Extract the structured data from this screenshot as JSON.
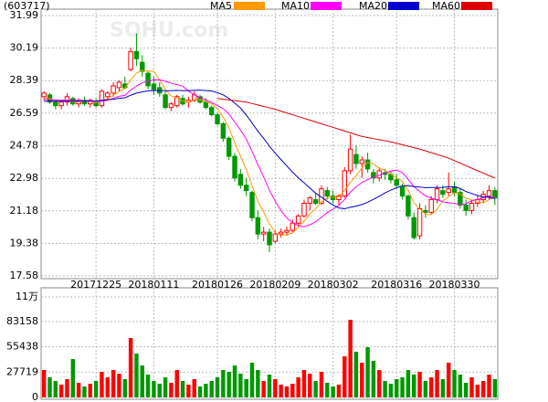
{
  "chart_data": [
    {
      "type": "candlestick",
      "title": "(603717)",
      "watermark": "SOHU.com",
      "categories": [
        null,
        null,
        null,
        null,
        null,
        null,
        null,
        null,
        null,
        "20171225",
        null,
        null,
        null,
        null,
        null,
        null,
        null,
        null,
        null,
        "20180111",
        null,
        null,
        null,
        null,
        null,
        null,
        null,
        null,
        null,
        null,
        "20180126",
        null,
        null,
        null,
        null,
        null,
        null,
        null,
        null,
        null,
        "20180209",
        null,
        null,
        null,
        null,
        null,
        null,
        null,
        null,
        null,
        "20180302",
        null,
        null,
        null,
        null,
        null,
        null,
        null,
        null,
        null,
        null,
        "20180316",
        null,
        null,
        null,
        null,
        null,
        null,
        null,
        null,
        null,
        "20180330",
        null,
        null,
        null,
        null,
        null,
        null,
        null
      ],
      "open": [
        27.5,
        27.6,
        27.2,
        27.0,
        27.2,
        27.4,
        27.1,
        27.3,
        27.1,
        27.2,
        27.0,
        27.5,
        27.7,
        28.0,
        28.2,
        29.0,
        30.0,
        29.4,
        28.8,
        28.2,
        28.0,
        27.6,
        26.9,
        27.0,
        27.4,
        27.2,
        27.3,
        27.5,
        27.2,
        26.9,
        26.5,
        26.0,
        25.2,
        24.2,
        23.2,
        22.6,
        22.2,
        20.8,
        19.9,
        20.0,
        19.5,
        19.9,
        20.0,
        20.1,
        20.5,
        20.9,
        21.6,
        21.8,
        21.6,
        22.3,
        22.0,
        21.8,
        22.0,
        23.4,
        24.3,
        23.8,
        24.0,
        23.3,
        23.0,
        23.3,
        23.2,
        22.9,
        22.5,
        22.0,
        20.8,
        19.8,
        21.2,
        21.1,
        21.8,
        22.3,
        22.2,
        22.5,
        22.2,
        21.5,
        21.2,
        21.6,
        21.8,
        22.0,
        22.3
      ],
      "high": [
        27.8,
        27.7,
        27.3,
        27.3,
        27.7,
        27.5,
        27.4,
        27.5,
        27.4,
        27.4,
        27.9,
        27.8,
        28.3,
        28.4,
        28.6,
        30.2,
        31.0,
        29.8,
        28.9,
        28.6,
        28.3,
        27.8,
        27.2,
        27.6,
        27.6,
        27.5,
        27.8,
        27.6,
        27.4,
        27.0,
        26.6,
        26.1,
        25.3,
        24.4,
        23.5,
        23.0,
        22.3,
        21.2,
        20.3,
        20.2,
        20.1,
        20.2,
        20.3,
        20.7,
        21.0,
        21.8,
        22.0,
        22.2,
        22.6,
        22.5,
        22.3,
        22.1,
        23.6,
        25.4,
        24.8,
        24.2,
        24.4,
        23.5,
        23.6,
        23.5,
        23.4,
        23.2,
        22.7,
        22.1,
        21.1,
        21.6,
        21.5,
        22.0,
        22.6,
        22.6,
        23.3,
        22.8,
        22.4,
        21.8,
        21.8,
        22.0,
        22.3,
        22.6,
        22.5
      ],
      "low": [
        27.3,
        27.1,
        26.8,
        26.8,
        27.0,
        27.0,
        26.9,
        27.0,
        26.9,
        26.9,
        26.9,
        27.3,
        27.5,
        27.8,
        27.9,
        28.9,
        29.2,
        28.6,
        27.9,
        27.6,
        27.5,
        26.8,
        26.7,
        26.9,
        27.0,
        26.9,
        27.2,
        27.1,
        26.8,
        26.4,
        25.9,
        25.0,
        24.0,
        22.8,
        22.4,
        22.0,
        20.6,
        19.6,
        19.5,
        18.9,
        19.4,
        19.7,
        19.8,
        20.0,
        20.3,
        20.8,
        21.2,
        21.5,
        21.5,
        21.8,
        21.6,
        21.5,
        21.9,
        23.2,
        23.5,
        23.0,
        23.3,
        22.7,
        22.8,
        22.9,
        22.7,
        22.4,
        21.8,
        20.7,
        19.6,
        19.6,
        20.8,
        21.0,
        21.6,
        21.9,
        22.0,
        22.0,
        21.3,
        20.9,
        21.0,
        21.4,
        21.6,
        21.8,
        21.5
      ],
      "close": [
        27.7,
        27.2,
        27.0,
        27.2,
        27.5,
        27.1,
        27.3,
        27.1,
        27.3,
        27.0,
        27.8,
        27.7,
        28.1,
        28.3,
        28.0,
        30.0,
        29.6,
        28.9,
        28.1,
        27.9,
        27.7,
        26.9,
        27.1,
        27.5,
        27.1,
        27.3,
        27.6,
        27.2,
        26.9,
        26.5,
        26.0,
        25.2,
        24.2,
        23.0,
        22.6,
        22.3,
        20.8,
        19.9,
        20.0,
        19.3,
        19.9,
        20.0,
        20.1,
        20.5,
        20.9,
        21.6,
        21.9,
        21.6,
        22.4,
        22.0,
        21.8,
        22.0,
        23.4,
        24.6,
        23.8,
        24.0,
        23.5,
        23.0,
        23.4,
        23.2,
        22.9,
        22.6,
        22.0,
        20.9,
        19.7,
        21.3,
        21.1,
        21.8,
        22.4,
        22.1,
        22.4,
        22.2,
        21.5,
        21.2,
        21.6,
        21.8,
        22.1,
        22.3,
        21.9
      ],
      "up_color": "#ff0000",
      "down_color": "#009900",
      "ylim": [
        17.58,
        31.99
      ],
      "yticks": [
        17.58,
        19.38,
        21.18,
        22.98,
        24.78,
        26.59,
        28.39,
        30.19,
        31.99
      ],
      "grid": true,
      "series": [
        {
          "name": "MA5",
          "color": "#ff9900",
          "values": [
            27.4,
            27.4,
            27.3,
            27.3,
            27.32,
            27.2,
            27.22,
            27.24,
            27.26,
            27.16,
            27.3,
            27.38,
            27.58,
            27.78,
            27.98,
            28.42,
            28.8,
            28.96,
            28.92,
            28.9,
            28.44,
            27.9,
            27.54,
            27.42,
            27.26,
            27.18,
            27.32,
            27.34,
            27.22,
            27.1,
            26.84,
            26.36,
            25.76,
            24.98,
            24.2,
            23.46,
            22.58,
            21.72,
            21.12,
            20.46,
            19.98,
            19.82,
            19.86,
            19.96,
            20.28,
            20.62,
            21.0,
            21.3,
            21.68,
            21.9,
            21.94,
            21.96,
            22.32,
            22.76,
            23.12,
            23.56,
            23.86,
            23.78,
            23.54,
            23.42,
            23.2,
            23.02,
            22.82,
            22.32,
            21.62,
            21.3,
            21.0,
            20.96,
            21.26,
            21.74,
            21.96,
            22.18,
            22.12,
            21.88,
            21.78,
            21.66,
            21.64,
            21.8,
            21.94
          ]
        },
        {
          "name": "MA10",
          "color": "#ff00ff",
          "values": [
            27.35,
            27.35,
            27.3,
            27.3,
            27.3,
            27.3,
            27.31,
            27.27,
            27.28,
            27.24,
            27.25,
            27.3,
            27.41,
            27.52,
            27.57,
            27.86,
            28.09,
            28.27,
            28.35,
            28.44,
            28.43,
            28.35,
            28.25,
            28.17,
            28.08,
            27.81,
            27.61,
            27.44,
            27.32,
            27.18,
            27.01,
            26.84,
            26.55,
            26.1,
            25.65,
            25.15,
            24.47,
            23.74,
            23.05,
            22.33,
            21.72,
            21.2,
            20.79,
            20.54,
            20.37,
            20.3,
            20.41,
            20.58,
            20.82,
            21.09,
            21.28,
            21.48,
            21.81,
            22.22,
            22.51,
            22.75,
            22.91,
            23.05,
            23.15,
            23.27,
            23.38,
            23.44,
            23.3,
            22.93,
            22.52,
            22.25,
            22.01,
            21.89,
            21.79,
            21.68,
            21.63,
            21.59,
            21.54,
            21.57,
            21.76,
            21.81,
            21.91,
            21.96,
            21.91
          ]
        },
        {
          "name": "MA20",
          "color": "#0000cc",
          "values": [
            27.25,
            27.25,
            27.25,
            27.25,
            27.25,
            27.25,
            27.25,
            27.25,
            27.25,
            27.25,
            27.3,
            27.33,
            27.36,
            27.41,
            27.44,
            27.58,
            27.7,
            27.77,
            27.82,
            27.84,
            27.84,
            27.83,
            27.83,
            27.85,
            27.83,
            27.84,
            27.85,
            27.86,
            27.84,
            27.81,
            27.72,
            27.6,
            27.4,
            27.14,
            26.87,
            26.48,
            26.04,
            25.59,
            25.19,
            24.76,
            24.37,
            24.02,
            23.67,
            23.32,
            23.01,
            22.73,
            22.44,
            22.16,
            21.94,
            21.71,
            21.5,
            21.34,
            21.3,
            21.38,
            21.44,
            21.53,
            21.66,
            21.82,
            21.99,
            22.18,
            22.33,
            22.46,
            22.56,
            22.58,
            22.52,
            22.5,
            22.46,
            22.47,
            22.47,
            22.48,
            22.51,
            22.52,
            22.42,
            22.25,
            22.14,
            22.03,
            21.96,
            21.93,
            21.85
          ]
        },
        {
          "name": "MA60",
          "color": "#dd0000",
          "values": [
            null,
            null,
            null,
            null,
            null,
            null,
            null,
            null,
            null,
            null,
            null,
            null,
            null,
            null,
            null,
            null,
            null,
            null,
            null,
            null,
            null,
            null,
            null,
            null,
            null,
            null,
            null,
            null,
            null,
            null,
            27.4,
            27.36,
            27.32,
            27.28,
            27.24,
            27.2,
            27.12,
            27.04,
            26.96,
            26.88,
            26.8,
            26.7,
            26.6,
            26.5,
            26.4,
            26.3,
            26.2,
            26.1,
            26.0,
            25.9,
            25.8,
            25.7,
            25.6,
            25.5,
            25.4,
            25.3,
            25.24,
            25.18,
            25.12,
            25.06,
            25.0,
            24.92,
            24.84,
            24.76,
            24.68,
            24.6,
            24.5,
            24.4,
            24.3,
            24.2,
            24.1,
            23.96,
            23.82,
            23.68,
            23.54,
            23.4,
            23.27,
            23.13,
            23.0
          ]
        }
      ]
    },
    {
      "type": "bar",
      "values": [
        30000,
        22000,
        18000,
        14000,
        20000,
        42000,
        16000,
        12000,
        15000,
        18000,
        28000,
        22000,
        30000,
        26000,
        20000,
        65000,
        48000,
        35000,
        25000,
        18000,
        15000,
        22000,
        16000,
        30000,
        18000,
        14000,
        20000,
        12000,
        15000,
        18000,
        22000,
        30000,
        28000,
        35000,
        26000,
        20000,
        38000,
        30000,
        18000,
        25000,
        20000,
        14000,
        12000,
        15000,
        22000,
        30000,
        26000,
        18000,
        28000,
        16000,
        12000,
        14000,
        45000,
        85000,
        50000,
        38000,
        55000,
        40000,
        30000,
        18000,
        15000,
        20000,
        22000,
        30000,
        25000,
        28000,
        18000,
        22000,
        30000,
        20000,
        38000,
        30000,
        25000,
        16000,
        22000,
        14000,
        18000,
        25000,
        20000
      ],
      "ylim": [
        0,
        110000
      ],
      "yticks": [
        0,
        27719,
        55438,
        83158,
        {
          "value": 110000,
          "label": "11万"
        }
      ],
      "grid": true
    }
  ]
}
